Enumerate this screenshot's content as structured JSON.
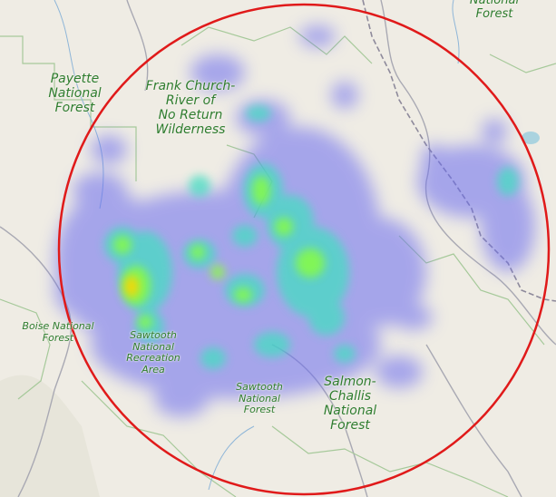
{
  "map": {
    "labels": {
      "payette": "Payette\nNational\nForest",
      "frank_church": "Frank Church-\nRiver of\nNo Return\nWilderness",
      "boise": "Boise National\nForest",
      "sawtooth_nra": "Sawtooth\nNational\nRecreation\nArea",
      "sawtooth_nf": "Sawtooth\nNational\nForest",
      "salmon_challis": "Salmon-\nChallis\nNational\nForest",
      "top_right": "National\nForest"
    },
    "colors": {
      "background": "#efece4",
      "circle": "#e01a1a",
      "label": "#2f7d2f",
      "heat_low": "#6b6cf0",
      "heat_mid": "#3fe0c0",
      "heat_high": "#8aff3a",
      "heat_peak": "#ffd400"
    },
    "overlay": {
      "type": "heatmap",
      "boundary": "search-radius-circle"
    }
  }
}
